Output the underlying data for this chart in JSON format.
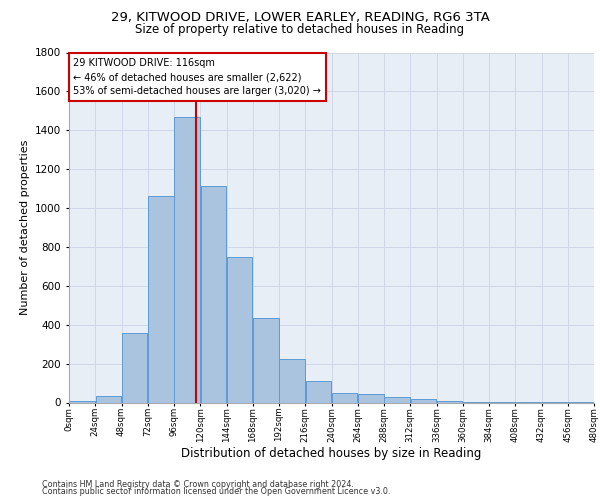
{
  "title_line1": "29, KITWOOD DRIVE, LOWER EARLEY, READING, RG6 3TA",
  "title_line2": "Size of property relative to detached houses in Reading",
  "xlabel": "Distribution of detached houses by size in Reading",
  "ylabel": "Number of detached properties",
  "footnote1": "Contains HM Land Registry data © Crown copyright and database right 2024.",
  "footnote2": "Contains public sector information licensed under the Open Government Licence v3.0.",
  "bar_values": [
    10,
    35,
    355,
    1060,
    1470,
    1115,
    750,
    435,
    225,
    110,
    50,
    45,
    30,
    20,
    10,
    5,
    2,
    2,
    2,
    1
  ],
  "bin_edges": [
    0,
    24,
    48,
    72,
    96,
    120,
    144,
    168,
    192,
    216,
    240,
    264,
    288,
    312,
    336,
    360,
    384,
    408,
    432,
    456,
    480
  ],
  "bar_color": "#aac4e0",
  "bar_edge_color": "#5b9bd5",
  "grid_color": "#d0d8e8",
  "property_size": 116,
  "annotation_line1": "29 KITWOOD DRIVE: 116sqm",
  "annotation_line2": "← 46% of detached houses are smaller (2,622)",
  "annotation_line3": "53% of semi-detached houses are larger (3,020) →",
  "vline_color": "#cc0000",
  "annotation_box_edge": "#cc0000",
  "ylim": [
    0,
    1800
  ],
  "xlim": [
    0,
    480
  ],
  "yticks": [
    0,
    200,
    400,
    600,
    800,
    1000,
    1200,
    1400,
    1600,
    1800
  ],
  "xtick_labels": [
    "0sqm",
    "24sqm",
    "48sqm",
    "72sqm",
    "96sqm",
    "120sqm",
    "144sqm",
    "168sqm",
    "192sqm",
    "216sqm",
    "240sqm",
    "264sqm",
    "288sqm",
    "312sqm",
    "336sqm",
    "360sqm",
    "384sqm",
    "408sqm",
    "432sqm",
    "456sqm",
    "480sqm"
  ],
  "bg_color": "#e8eef5",
  "title1_fontsize": 9.5,
  "title2_fontsize": 8.5,
  "ylabel_fontsize": 8,
  "xlabel_fontsize": 8.5,
  "footnote_fontsize": 5.8,
  "ytick_fontsize": 7.5,
  "xtick_fontsize": 6.2,
  "annot_fontsize": 7.0
}
